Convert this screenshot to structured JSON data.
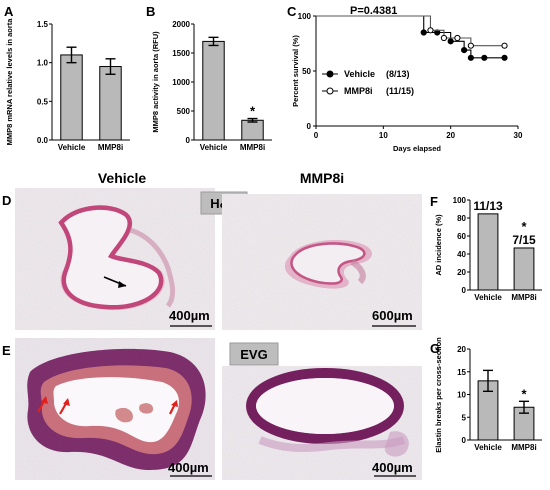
{
  "panels": {
    "A": {
      "label": "A"
    },
    "B": {
      "label": "B"
    },
    "C": {
      "label": "C"
    },
    "D": {
      "label": "D",
      "column_left": "Vehicle",
      "column_right": "MMP8i",
      "stain": "H&E",
      "scale_left": "400µm",
      "scale_right": "600µm"
    },
    "E": {
      "label": "E",
      "stain": "EVG",
      "scale_left": "400µm",
      "scale_right": "400µm"
    },
    "F": {
      "label": "F"
    },
    "G": {
      "label": "G"
    }
  },
  "chart_data": [
    {
      "id": "A",
      "type": "bar",
      "categories": [
        "Vehicle",
        "MMP8i"
      ],
      "values": [
        1.1,
        0.95
      ],
      "errors": [
        0.1,
        0.1
      ],
      "ylabel": "MMP8 mRNA relative levels in aorta",
      "ylim": [
        0,
        1.5
      ],
      "yticks": [
        "0.0",
        "0.5",
        "1.0",
        "1.5"
      ],
      "ytick_values": [
        0,
        0.5,
        1.0,
        1.5
      ]
    },
    {
      "id": "B",
      "type": "bar",
      "categories": [
        "Vehicle",
        "MMP8i"
      ],
      "values": [
        1700,
        340
      ],
      "errors": [
        70,
        30
      ],
      "ylabel": "MMP8 activity in aorta (RFU)",
      "ylim": [
        0,
        2000
      ],
      "yticks": [
        "0",
        "500",
        "1000",
        "1500",
        "2000"
      ],
      "ytick_values": [
        0,
        500,
        1000,
        1500,
        2000
      ],
      "significance": "*"
    },
    {
      "id": "C",
      "type": "line",
      "title": "P=0.4381",
      "xlabel": "Days elapsed",
      "ylabel": "Percent survival (%)",
      "xlim": [
        0,
        30
      ],
      "ylim": [
        0,
        100
      ],
      "xticks": [
        "0",
        "10",
        "20",
        "30"
      ],
      "xtick_values": [
        0,
        10,
        20,
        30
      ],
      "yticks": [
        "0",
        "50",
        "100"
      ],
      "ytick_values": [
        0,
        50,
        100
      ],
      "series": [
        {
          "name": "Vehicle",
          "count": "(8/13)",
          "marker": "filled",
          "x": [
            0,
            16,
            18,
            20,
            22,
            23,
            25,
            28
          ],
          "y": [
            100,
            85,
            85,
            77,
            69,
            62,
            62,
            62
          ]
        },
        {
          "name": "MMP8i",
          "count": "(11/15)",
          "marker": "open",
          "x": [
            0,
            17,
            19,
            21,
            23,
            28
          ],
          "y": [
            100,
            87,
            80,
            80,
            73,
            73
          ]
        }
      ]
    },
    {
      "id": "F",
      "type": "bar",
      "categories": [
        "Vehicle",
        "MMP8i"
      ],
      "values": [
        84.6,
        46.7
      ],
      "labels": [
        "11/13",
        "7/15"
      ],
      "ylabel": "AD incidence (%)",
      "ylim": [
        0,
        100
      ],
      "yticks": [
        "0",
        "20",
        "40",
        "60",
        "80",
        "100"
      ],
      "ytick_values": [
        0,
        20,
        40,
        60,
        80,
        100
      ],
      "significance": "*"
    },
    {
      "id": "G",
      "type": "bar",
      "categories": [
        "Vehicle",
        "MMP8i"
      ],
      "values": [
        13,
        7.2
      ],
      "errors": [
        2.3,
        1.3
      ],
      "ylabel": "Elastin breaks per cross-section",
      "ylim": [
        0,
        20
      ],
      "yticks": [
        "0",
        "5",
        "10",
        "15",
        "20"
      ],
      "ytick_values": [
        0,
        5,
        10,
        15,
        20
      ],
      "significance": "*"
    }
  ],
  "colors": {
    "bar": "#b9b9b9",
    "bar_stroke": "#000000",
    "he_tissue": "#c2527f",
    "he_light": "#e6b3c9",
    "he_bg": "#efebee",
    "evg_tissue": "#7d2a6a",
    "evg_dark": "#4a1440",
    "evg_bg": "#ece8ed",
    "arrow_red": "#e0221e"
  }
}
